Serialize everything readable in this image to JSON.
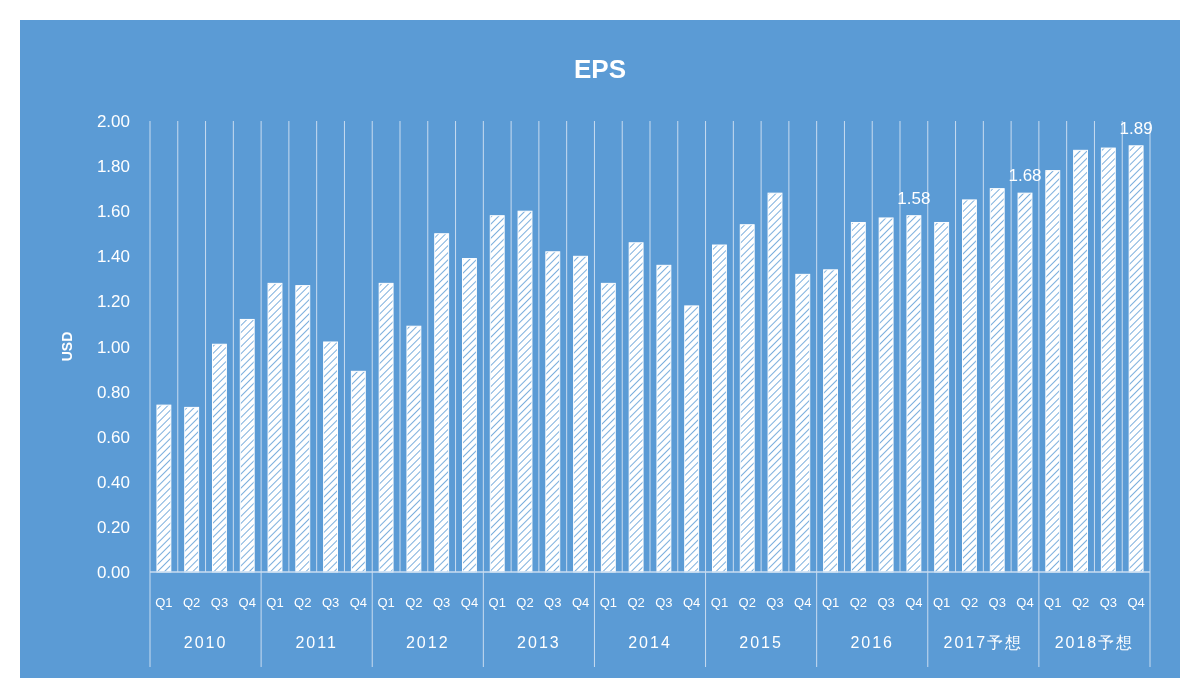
{
  "chart_data": {
    "type": "bar",
    "title": "EPS",
    "ylabel": "USD",
    "categories": [
      "Q1",
      "Q2",
      "Q3",
      "Q4",
      "Q1",
      "Q2",
      "Q3",
      "Q4",
      "Q1",
      "Q2",
      "Q3",
      "Q4",
      "Q1",
      "Q2",
      "Q3",
      "Q4",
      "Q1",
      "Q2",
      "Q3",
      "Q4",
      "Q1",
      "Q2",
      "Q3",
      "Q4",
      "Q1",
      "Q2",
      "Q3",
      "Q4",
      "Q1",
      "Q2",
      "Q3",
      "Q4",
      "Q1",
      "Q2",
      "Q3",
      "Q4"
    ],
    "values": [
      0.74,
      0.73,
      1.01,
      1.12,
      1.28,
      1.27,
      1.02,
      0.89,
      1.28,
      1.09,
      1.5,
      1.39,
      1.58,
      1.6,
      1.42,
      1.4,
      1.28,
      1.46,
      1.36,
      1.18,
      1.45,
      1.54,
      1.68,
      1.32,
      1.34,
      1.55,
      1.57,
      1.58,
      1.55,
      1.65,
      1.7,
      1.68,
      1.78,
      1.87,
      1.88,
      1.89
    ],
    "value_labels": [
      null,
      null,
      null,
      null,
      null,
      null,
      null,
      null,
      null,
      null,
      null,
      null,
      null,
      null,
      null,
      null,
      null,
      null,
      null,
      null,
      null,
      null,
      null,
      null,
      null,
      null,
      null,
      "1.58",
      null,
      null,
      null,
      "1.68",
      null,
      null,
      null,
      "1.89"
    ],
    "color": "#ffffff",
    "ylim": [
      0,
      2
    ],
    "yticks": [
      {
        "value": 0,
        "label": "0.00"
      },
      {
        "value": 0.2,
        "label": "0.20"
      },
      {
        "value": 0.4,
        "label": "0.40"
      },
      {
        "value": 0.6,
        "label": "0.60"
      },
      {
        "value": 0.8,
        "label": "0.80"
      },
      {
        "value": 1,
        "label": "1.00"
      },
      {
        "value": 1.2,
        "label": "1.20"
      },
      {
        "value": 1.4,
        "label": "1.40"
      },
      {
        "value": 1.6,
        "label": "1.60"
      },
      {
        "value": 1.8,
        "label": "1.80"
      },
      {
        "value": 2,
        "label": "2.00"
      }
    ],
    "grid": "x",
    "annotations": [
      "2010",
      "2011",
      "2012",
      "2013",
      "2014",
      "2015",
      "2016",
      "2017予想",
      "2018予想"
    ]
  }
}
